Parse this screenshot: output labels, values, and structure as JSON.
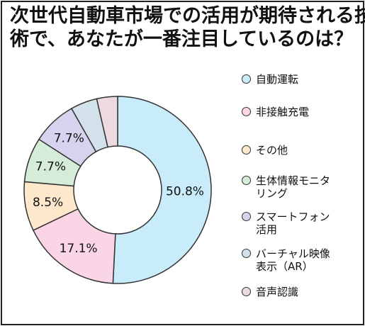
{
  "title_lines": [
    "次世代自動車市場での活用が期待される技",
    "術で、あなたが一番注目しているのは？"
  ],
  "chart_data": {
    "type": "pie",
    "title": "次世代自動車市場での活用が期待される技術で、あなたが一番注目しているのは？",
    "unit": "%",
    "legend_position": "right",
    "categories": [
      "自動運転",
      "非接触充電",
      "その他",
      "生体情報モニタリング",
      "スマートフォン活用",
      "バーチャル映像表示（AR）",
      "音声認識"
    ],
    "legend_labels": [
      "自動運転",
      "非接触充電",
      "その他",
      "生体情報モニタ\nリング",
      "スマートフォン\n活用",
      "バーチャル映像\n表示（AR）",
      "音声認識"
    ],
    "values": [
      50.8,
      17.1,
      8.5,
      7.7,
      7.7,
      4.6,
      3.6
    ],
    "data_labels": [
      "50.8%",
      "17.1%",
      "8.5%",
      "7.7%",
      "7.7%",
      "",
      ""
    ],
    "colors": [
      "#c9ecfb",
      "#fad5e5",
      "#fde8cc",
      "#d5ecd8",
      "#d7d3ee",
      "#d3e2ea",
      "#ecdadf"
    ]
  }
}
